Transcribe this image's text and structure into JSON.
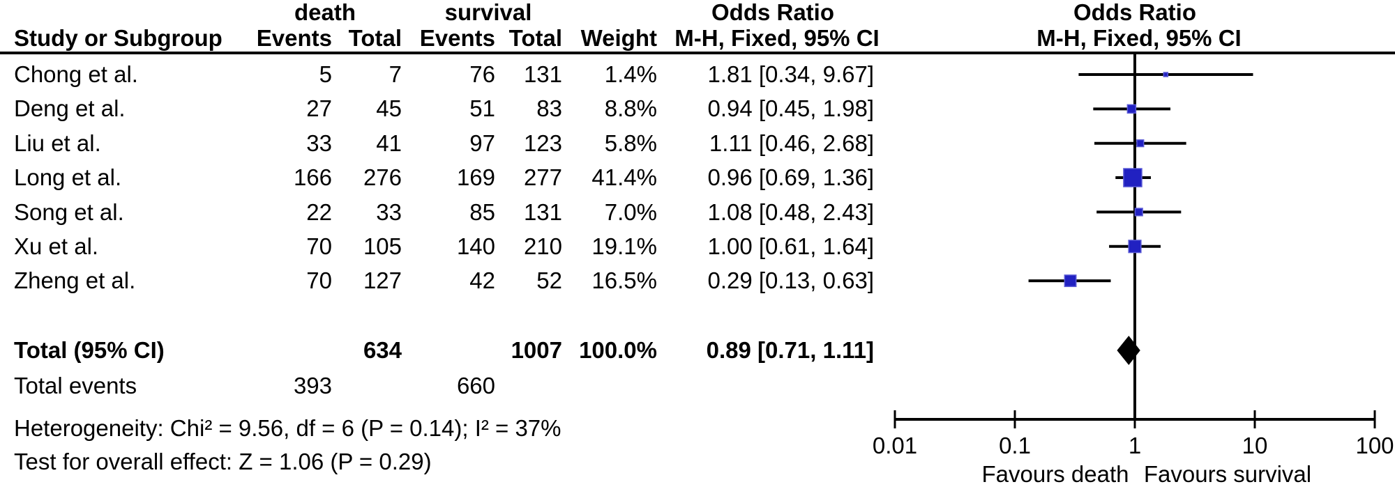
{
  "title_row": {
    "group1": "death",
    "group2": "survival",
    "or_text_title": "Odds Ratio",
    "or_plot_title": "Odds Ratio"
  },
  "columns": {
    "study": "Study or Subgroup",
    "events1": "Events",
    "total1": "Total",
    "events2": "Events",
    "total2": "Total",
    "weight": "Weight",
    "mh_text": "M-H, Fixed, 95% CI",
    "mh_plot": "M-H, Fixed, 95% CI"
  },
  "rows": [
    {
      "study": "Chong et al.",
      "e1": "5",
      "t1": "7",
      "e2": "76",
      "t2": "131",
      "weight": "1.4%",
      "or_text": "1.81 [0.34, 9.67]"
    },
    {
      "study": "Deng et al.",
      "e1": "27",
      "t1": "45",
      "e2": "51",
      "t2": "83",
      "weight": "8.8%",
      "or_text": "0.94 [0.45, 1.98]"
    },
    {
      "study": "Liu et al.",
      "e1": "33",
      "t1": "41",
      "e2": "97",
      "t2": "123",
      "weight": "5.8%",
      "or_text": "1.11 [0.46, 2.68]"
    },
    {
      "study": "Long et al.",
      "e1": "166",
      "t1": "276",
      "e2": "169",
      "t2": "277",
      "weight": "41.4%",
      "or_text": "0.96 [0.69, 1.36]"
    },
    {
      "study": "Song et al.",
      "e1": "22",
      "t1": "33",
      "e2": "85",
      "t2": "131",
      "weight": "7.0%",
      "or_text": "1.08 [0.48, 2.43]"
    },
    {
      "study": "Xu et al.",
      "e1": "70",
      "t1": "105",
      "e2": "140",
      "t2": "210",
      "weight": "19.1%",
      "or_text": "1.00 [0.61, 1.64]"
    },
    {
      "study": "Zheng et al.",
      "e1": "70",
      "t1": "127",
      "e2": "42",
      "t2": "52",
      "weight": "16.5%",
      "or_text": "0.29 [0.13, 0.63]"
    }
  ],
  "totals": {
    "label": "Total (95% CI)",
    "t1": "634",
    "t2": "1007",
    "weight": "100.0%",
    "or_text": "0.89 [0.71, 1.11]"
  },
  "total_events": {
    "label": "Total events",
    "e1": "393",
    "e2": "660"
  },
  "footer": {
    "heterogeneity": "Heterogeneity: Chi² = 9.56, df = 6 (P = 0.14); I² = 37%",
    "overall_effect": "Test for overall effect: Z = 1.06 (P = 0.29)"
  },
  "chart_data": {
    "type": "forest",
    "scale": "log10",
    "xlim": [
      0.01,
      100
    ],
    "ticks": [
      {
        "v": 0.01,
        "label": "0.01"
      },
      {
        "v": 0.1,
        "label": "0.1"
      },
      {
        "v": 1,
        "label": "1"
      },
      {
        "v": 10,
        "label": "10"
      },
      {
        "v": 100,
        "label": "100"
      }
    ],
    "no_effect_value": 1,
    "favours_left": "Favours death",
    "favours_right": "Favours survival",
    "marker_color": "#2121c1",
    "marker_border_color": "#5a5ad6",
    "line_color": "#000000",
    "diamond_color": "#000000",
    "studies": [
      {
        "name": "Chong et al.",
        "or": 1.81,
        "lo": 0.34,
        "hi": 9.67,
        "weight": 1.4
      },
      {
        "name": "Deng et al.",
        "or": 0.94,
        "lo": 0.45,
        "hi": 1.98,
        "weight": 8.8
      },
      {
        "name": "Liu et al.",
        "or": 1.11,
        "lo": 0.46,
        "hi": 2.68,
        "weight": 5.8
      },
      {
        "name": "Long et al.",
        "or": 0.96,
        "lo": 0.69,
        "hi": 1.36,
        "weight": 41.4
      },
      {
        "name": "Song et al.",
        "or": 1.08,
        "lo": 0.48,
        "hi": 2.43,
        "weight": 7.0
      },
      {
        "name": "Xu et al.",
        "or": 1.0,
        "lo": 0.61,
        "hi": 1.64,
        "weight": 19.1
      },
      {
        "name": "Zheng et al.",
        "or": 0.29,
        "lo": 0.13,
        "hi": 0.63,
        "weight": 16.5
      }
    ],
    "total": {
      "or": 0.89,
      "lo": 0.71,
      "hi": 1.11
    }
  }
}
